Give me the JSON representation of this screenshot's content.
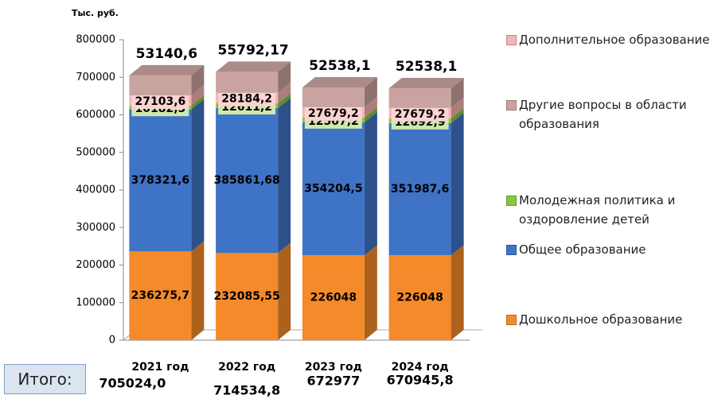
{
  "chart_data": {
    "type": "bar3d_stacked",
    "y_label": "Тыс. руб.",
    "categories": [
      "2021 год",
      "2022 год",
      "2023 год",
      "2024 год"
    ],
    "series": [
      {
        "name": "Дошкольное образование",
        "color": "#f58a2a",
        "values": [
          236275.7,
          232085.55,
          226048,
          226048
        ],
        "value_labels": [
          "236275,7",
          "232085,55",
          "226048",
          "226048"
        ]
      },
      {
        "name": "Общее образование",
        "color": "#3f73c6",
        "values": [
          378321.6,
          385861.68,
          354204.5,
          351987.6
        ],
        "value_labels": [
          "378321,6",
          "385861,68",
          "354204,5",
          "351987,6"
        ]
      },
      {
        "name": "Молодежная политика и оздоровление детей",
        "color": "#8cc63f",
        "values": [
          10182.5,
          12611.2,
          12507.2,
          12692.9
        ],
        "value_labels": [
          "10182,5",
          "12611,2",
          "12507,2",
          "12692,9"
        ]
      },
      {
        "name": "Дополнительное образование",
        "color": "#f7b3b3",
        "values": [
          27103.6,
          28184.2,
          27679.2,
          27679.2
        ],
        "value_labels": [
          "27103,6",
          "28184,2",
          "27679,2",
          "27679,2"
        ]
      },
      {
        "name": "Другие вопросы в области образования",
        "color": "#c9a3a0",
        "values": [
          53140.6,
          55792.17,
          52538.1,
          52538.1
        ],
        "value_labels": [
          "53140,6",
          "55792,17",
          "52538,1",
          "52538,1"
        ]
      }
    ],
    "legend_order": [
      3,
      4,
      2,
      1,
      0
    ],
    "ylim": [
      0,
      800000
    ],
    "yticks": [
      0,
      100000,
      200000,
      300000,
      400000,
      500000,
      600000,
      700000,
      800000
    ],
    "total_title": "Итого:",
    "totals": [
      705024.0,
      714534.8,
      672977,
      670945.8
    ],
    "total_labels": [
      "705024,0",
      "714534,8",
      "672977",
      "670945,8"
    ]
  }
}
